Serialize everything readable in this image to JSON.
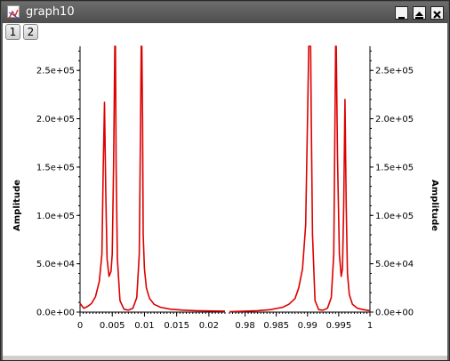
{
  "window": {
    "title": "graph10",
    "colors": {
      "titlebar": "#5a5a5a",
      "plot_line": "#dd0000"
    }
  },
  "tabs": [
    {
      "label": "1"
    },
    {
      "label": "2"
    }
  ],
  "title_buttons": [
    "minimize-icon",
    "maximize-icon",
    "close-icon"
  ],
  "chart_data": {
    "type": "line",
    "title": "",
    "xlabel": "",
    "ylabel": "Amplitude",
    "y2label": "Amplitude",
    "ylim": [
      0,
      275000
    ],
    "yticks": [
      "0.0e+00",
      "5.0e+04",
      "1.0e+05",
      "1.5e+05",
      "2.0e+05",
      "2.5e+05"
    ],
    "ytick_values": [
      0,
      50000,
      100000,
      150000,
      200000,
      250000
    ],
    "grid": false,
    "panels": [
      {
        "xlim": [
          0,
          0.0225
        ],
        "xticks": [
          "0",
          "0.005",
          "0.01",
          "0.015",
          "0.02"
        ],
        "xtick_values": [
          0,
          0.005,
          0.01,
          0.015,
          0.02
        ],
        "series": [
          {
            "x": [
              0,
              0.0006,
              0.0012,
              0.0018,
              0.0024,
              0.003,
              0.0034,
              0.0036,
              0.0038,
              0.004,
              0.0042,
              0.0045,
              0.0048,
              0.005,
              0.0052,
              0.0054,
              0.0055,
              0.0056,
              0.0058,
              0.0062,
              0.0068,
              0.0075,
              0.0082,
              0.0088,
              0.0092,
              0.0094,
              0.0095,
              0.0096,
              0.0097,
              0.0098,
              0.01,
              0.0103,
              0.0108,
              0.0115,
              0.0125,
              0.014,
              0.016,
              0.018,
              0.02,
              0.0225
            ],
            "y": [
              9000,
              4000,
              6000,
              9000,
              16000,
              32000,
              60000,
              150000,
              217000,
              120000,
              55000,
              37000,
              42000,
              60000,
              150000,
              275000,
              275000,
              150000,
              55000,
              12000,
              3000,
              2000,
              4000,
              15000,
              60000,
              200000,
              275000,
              275000,
              200000,
              80000,
              45000,
              25000,
              14000,
              8000,
              5000,
              3000,
              2000,
              1500,
              1200,
              1000
            ]
          }
        ]
      },
      {
        "xlim": [
          0.9775,
          1
        ],
        "xticks": [
          "0.98",
          "0.985",
          "0.99",
          "0.995",
          "1"
        ],
        "xtick_values": [
          0.98,
          0.985,
          0.99,
          0.995,
          1
        ],
        "series": [
          {
            "x": [
              0.9775,
              0.98,
              0.982,
              0.984,
              0.986,
              0.987,
              0.988,
              0.9886,
              0.9892,
              0.9897,
              0.99,
              0.9902,
              0.9904,
              0.9905,
              0.9906,
              0.9908,
              0.9912,
              0.9918,
              0.9925,
              0.9932,
              0.9938,
              0.9942,
              0.9944,
              0.9945,
              0.9946,
              0.9948,
              0.9951,
              0.9954,
              0.9956,
              0.9958,
              0.996,
              0.9962,
              0.9964,
              0.9967,
              0.9972,
              0.998,
              0.999,
              1
            ],
            "y": [
              500,
              1000,
              1500,
              2500,
              5000,
              8000,
              14000,
              25000,
              45000,
              90000,
              200000,
              275000,
              275000,
              275000,
              200000,
              80000,
              12000,
              2500,
              2000,
              4000,
              15000,
              60000,
              200000,
              275000,
              275000,
              160000,
              60000,
              37000,
              45000,
              110000,
              220000,
              110000,
              40000,
              18000,
              8000,
              4000,
              2500,
              1500
            ]
          }
        ]
      }
    ]
  }
}
